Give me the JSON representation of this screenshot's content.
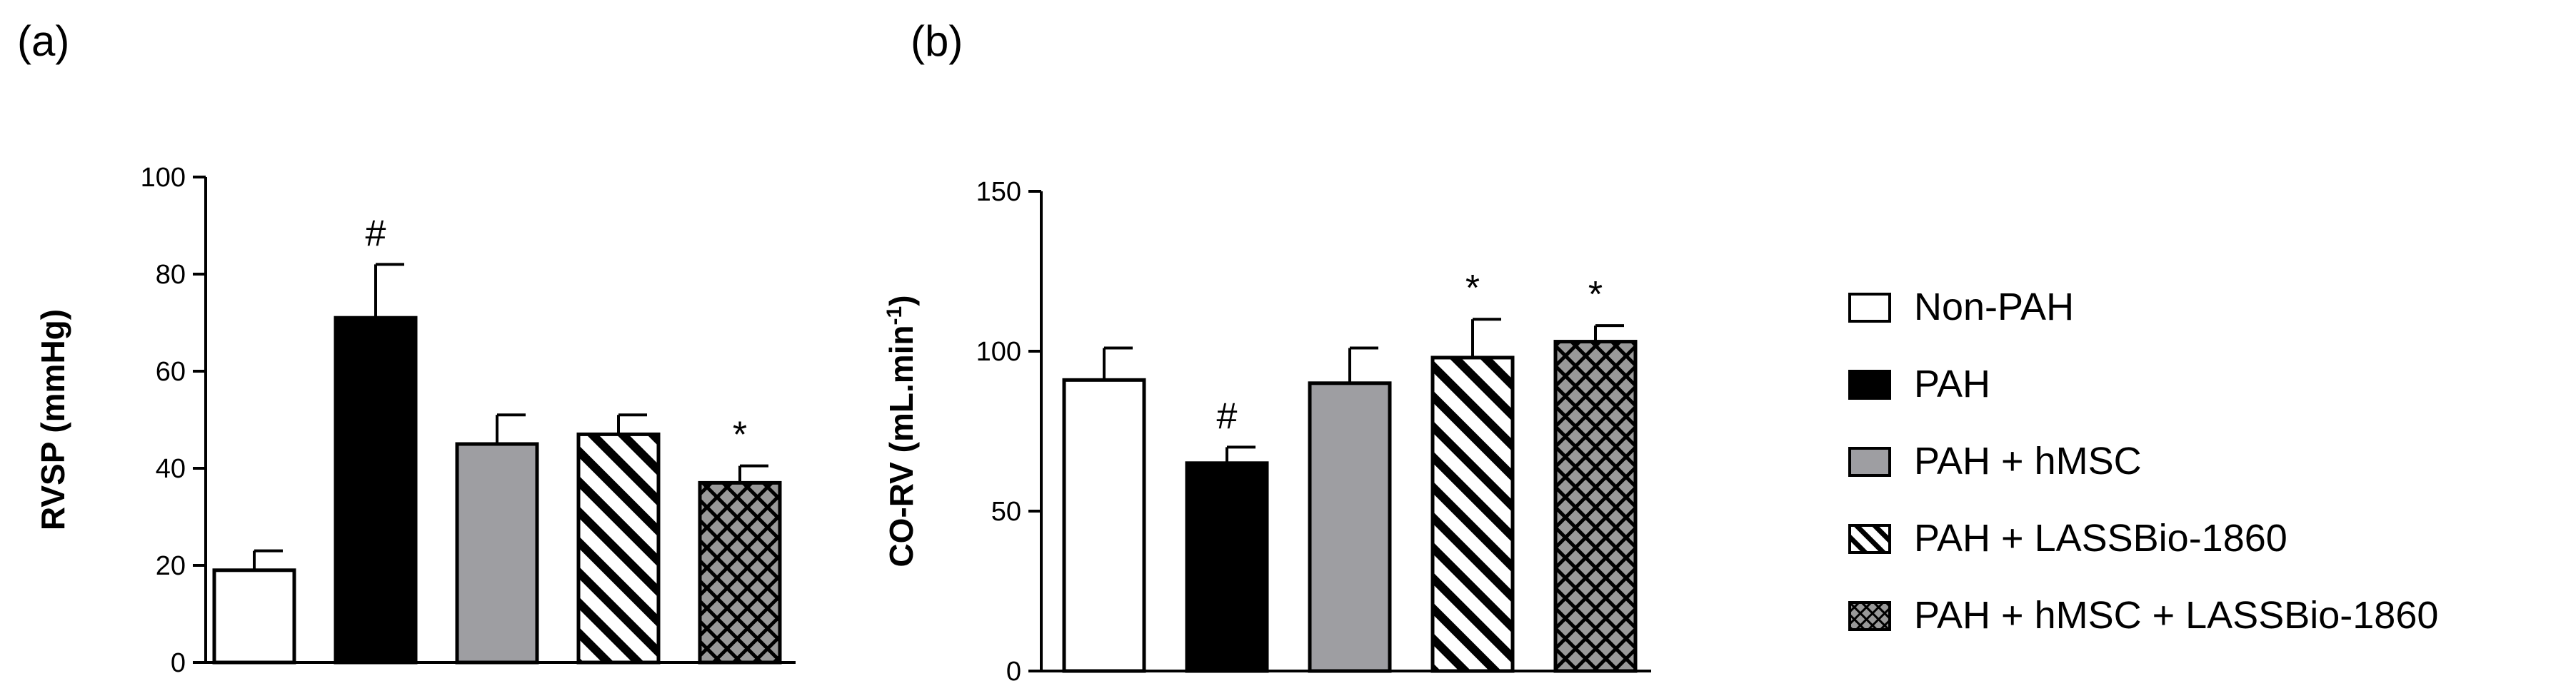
{
  "chart_data": [
    {
      "type": "bar",
      "panel_label": "(a)",
      "categories": [
        "Non-PAH",
        "PAH",
        "PAH + hMSC",
        "PAH + LASSBio-1860",
        "PAH + hMSC + LASSBio-1860"
      ],
      "values": [
        19,
        71,
        45,
        47,
        37
      ],
      "errors": [
        4,
        11,
        6,
        4,
        3.5
      ],
      "marks": [
        "",
        "#",
        "",
        "",
        "*"
      ],
      "ylabel": "RVSP (mmHg)",
      "ylim": [
        0,
        100
      ],
      "yticks": [
        "0",
        "20",
        "40",
        "60",
        "80",
        "100"
      ],
      "grid": false
    },
    {
      "type": "bar",
      "panel_label": "(b)",
      "categories": [
        "Non-PAH",
        "PAH",
        "PAH + hMSC",
        "PAH + LASSBio-1860",
        "PAH + hMSC + LASSBio-1860"
      ],
      "values": [
        91,
        65,
        90,
        98,
        103
      ],
      "errors": [
        10,
        5,
        11,
        12,
        5
      ],
      "marks": [
        "",
        "#",
        "",
        "*",
        "*"
      ],
      "ylabel": "CO-RV (mL.min",
      "ylabel_superscript": "-1",
      "ylabel_close": ")",
      "ylim": [
        0,
        150
      ],
      "yticks": [
        "0",
        "50",
        "100",
        "150"
      ],
      "grid": false
    }
  ],
  "legend": {
    "placement": "right",
    "items": [
      {
        "label": "Non-PAH",
        "fill": "white"
      },
      {
        "label": "PAH",
        "fill": "black"
      },
      {
        "label": "PAH + hMSC",
        "fill": "gray"
      },
      {
        "label": "PAH + LASSBio-1860",
        "fill": "diagonal-hatch"
      },
      {
        "label": "PAH + hMSC + LASSBio-1860",
        "fill": "crosshatch"
      }
    ]
  },
  "colors": {
    "black": "#000000",
    "white": "#ffffff",
    "gray": "#9e9ea2",
    "crosshatch_bg": "#999999"
  }
}
